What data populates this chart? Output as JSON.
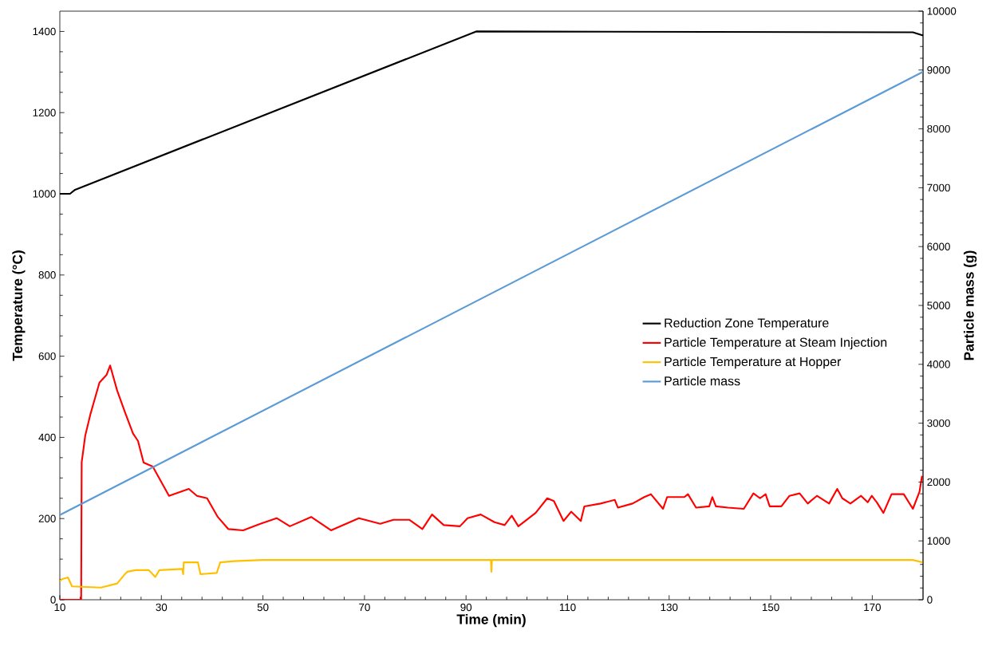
{
  "chart_data": {
    "type": "line",
    "xlabel": "Time (min)",
    "ylabel": "Temperature (°C)",
    "y2label": "Particle mass (g)",
    "xlim": [
      10,
      180
    ],
    "xticks": [
      10,
      30,
      50,
      70,
      90,
      110,
      130,
      150,
      170
    ],
    "ylim": [
      0,
      1450
    ],
    "yticks": [
      0,
      200,
      400,
      600,
      800,
      1000,
      1200,
      1400
    ],
    "y2lim": [
      0,
      10000
    ],
    "y2ticks": [
      0,
      1000,
      2000,
      3000,
      4000,
      5000,
      6000,
      7000,
      8000,
      9000,
      10000
    ],
    "legend": "right",
    "grid": false,
    "line_style": "solid",
    "series": [
      {
        "name": "Reduction Zone Temperature",
        "color": "#000000",
        "x": [
          10,
          12,
          13,
          92,
          178,
          180
        ],
        "values": [
          1000,
          1000,
          1010,
          1400,
          1398,
          1390
        ]
      },
      {
        "name": "Particle Temperature at Steam Injection",
        "color": "#ff0000",
        "x": [
          10,
          14.2,
          14.3,
          15.0,
          16.0,
          17.8,
          19.2,
          19.9,
          21.3,
          22.8,
          24.4,
          25.4,
          26.5,
          28.3,
          31.5,
          35.4,
          37.0,
          39.0,
          41.1,
          43.2,
          46.1,
          49.5,
          52.7,
          55.3,
          59.5,
          63.4,
          68.9,
          73.1,
          75.7,
          78.8,
          81.4,
          83.3,
          85.6,
          88.8,
          90.3,
          92.9,
          95.6,
          97.6,
          99.0,
          100.3,
          103.7,
          106.0,
          107.3,
          109.2,
          110.7,
          112.6,
          113.3,
          116.5,
          119.3,
          119.9,
          122.8,
          125.1,
          126.4,
          128.8,
          129.6,
          133.0,
          133.7,
          135.3,
          137.9,
          138.5,
          139.2,
          141.6,
          144.7,
          146.6,
          147.9,
          149.0,
          149.8,
          152.1,
          153.7,
          155.7,
          157.3,
          159.1,
          161.5,
          163.1,
          164.1,
          165.7,
          167.8,
          169.1,
          169.9,
          170.9,
          172.2,
          173.8,
          176.2,
          178.0,
          179.3,
          179.8
        ],
        "values": [
          0,
          0,
          338,
          404,
          456,
          535,
          554,
          577,
          515,
          463,
          410,
          391,
          338,
          328,
          256,
          273,
          256,
          250,
          204,
          174,
          171,
          187,
          201,
          181,
          204,
          171,
          201,
          187,
          197,
          197,
          174,
          210,
          184,
          181,
          201,
          210,
          191,
          184,
          207,
          181,
          214,
          250,
          243,
          194,
          217,
          194,
          230,
          237,
          246,
          227,
          237,
          253,
          260,
          224,
          253,
          253,
          260,
          227,
          230,
          253,
          230,
          227,
          224,
          262,
          250,
          260,
          230,
          230,
          256,
          262,
          237,
          256,
          237,
          273,
          250,
          237,
          256,
          240,
          256,
          240,
          214,
          260,
          260,
          224,
          266,
          305
        ]
      },
      {
        "name": "Particle Temperature at Hopper",
        "color": "#ffc000",
        "x": [
          10,
          10.3,
          11.6,
          12.4,
          18.1,
          21.3,
          22.8,
          23.3,
          24.9,
          27.5,
          28.8,
          29.6,
          34.1,
          34.3,
          34.4,
          37.2,
          37.7,
          40.9,
          41.6,
          44.3,
          50,
          94.9,
          95,
          95.1,
          178,
          180
        ],
        "values": [
          45,
          50,
          55,
          33,
          30,
          40,
          63,
          69,
          73,
          73,
          56,
          73,
          76,
          63,
          92,
          92,
          63,
          66,
          92,
          95,
          98,
          98,
          69,
          98,
          98,
          92
        ]
      },
      {
        "name": "Particle mass",
        "color": "#5b9bd5",
        "axis": "y2",
        "x": [
          10,
          180
        ],
        "values": [
          1440,
          8970
        ]
      }
    ]
  }
}
